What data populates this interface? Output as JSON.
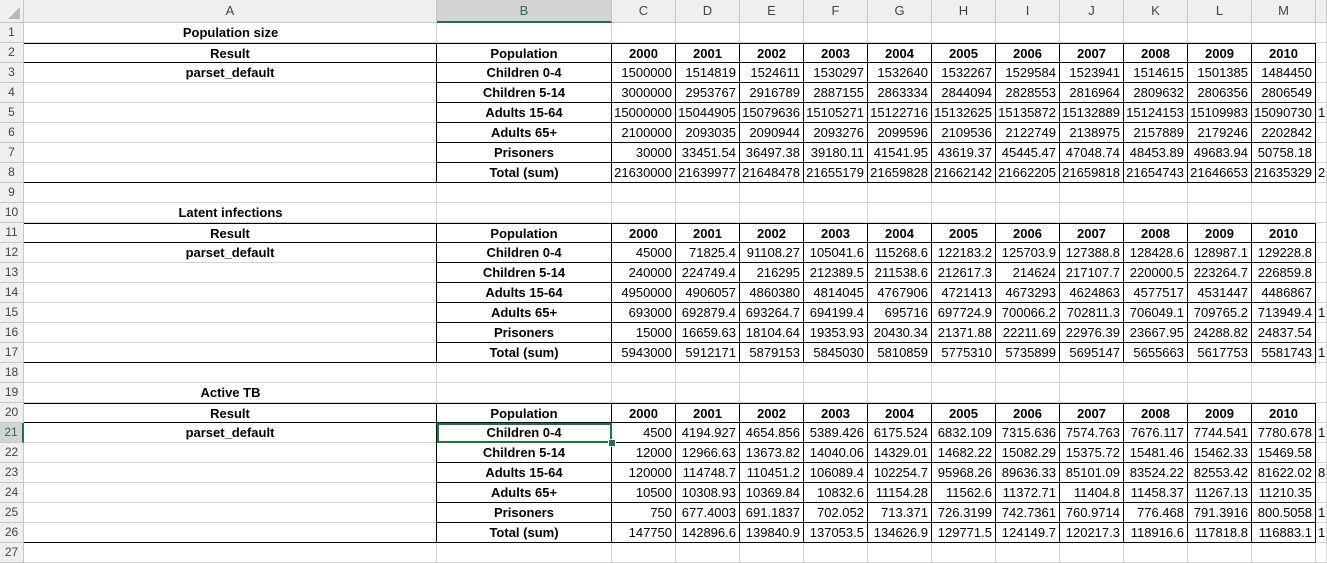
{
  "columns": [
    "A",
    "B",
    "C",
    "D",
    "E",
    "F",
    "G",
    "H",
    "I",
    "J",
    "K",
    "L",
    "M"
  ],
  "rows": [
    "1",
    "2",
    "3",
    "4",
    "5",
    "6",
    "7",
    "8",
    "9",
    "10",
    "11",
    "12",
    "13",
    "14",
    "15",
    "16",
    "17",
    "18",
    "19",
    "20",
    "21",
    "22",
    "23",
    "24",
    "25",
    "26",
    "27"
  ],
  "selected_cell": "B21",
  "years": [
    "2000",
    "2001",
    "2002",
    "2003",
    "2004",
    "2005",
    "2006",
    "2007",
    "2008",
    "2009",
    "2010"
  ],
  "populations": [
    "Children 0-4",
    "Children 5-14",
    "Adults 15-64",
    "Adults 65+",
    "Prisoners",
    "Total (sum)"
  ],
  "header_labels": {
    "result": "Result",
    "population": "Population",
    "parset": "parset_default"
  },
  "sections": [
    {
      "title": "Population size",
      "rows": [
        [
          "1500000",
          "1514819",
          "1524611",
          "1530297",
          "1532640",
          "1532267",
          "1529584",
          "1523941",
          "1514615",
          "1501385",
          "1484450"
        ],
        [
          "3000000",
          "2953767",
          "2916789",
          "2887155",
          "2863334",
          "2844094",
          "2828553",
          "2816964",
          "2809632",
          "2806356",
          "2806549"
        ],
        [
          "15000000",
          "15044905",
          "15079636",
          "15105271",
          "15122716",
          "15132625",
          "15135872",
          "15132889",
          "15124153",
          "15109983",
          "15090730"
        ],
        [
          "2100000",
          "2093035",
          "2090944",
          "2093276",
          "2099596",
          "2109536",
          "2122749",
          "2138975",
          "2157889",
          "2179246",
          "2202842"
        ],
        [
          "30000",
          "33451.54",
          "36497.38",
          "39180.11",
          "41541.95",
          "43619.37",
          "45445.47",
          "47048.74",
          "48453.89",
          "49683.94",
          "50758.18"
        ],
        [
          "21630000",
          "21639977",
          "21648478",
          "21655179",
          "21659828",
          "21662142",
          "21662205",
          "21659818",
          "21654743",
          "21646653",
          "21635329"
        ]
      ],
      "cutoff": [
        "",
        "",
        "1",
        "",
        "",
        "2"
      ]
    },
    {
      "title": "Latent infections",
      "rows": [
        [
          "45000",
          "71825.4",
          "91108.27",
          "105041.6",
          "115268.6",
          "122183.2",
          "125703.9",
          "127388.8",
          "128428.6",
          "128987.1",
          "129228.8"
        ],
        [
          "240000",
          "224749.4",
          "216295",
          "212389.5",
          "211538.6",
          "212617.3",
          "214624",
          "217107.7",
          "220000.5",
          "223264.7",
          "226859.8"
        ],
        [
          "4950000",
          "4906057",
          "4860380",
          "4814045",
          "4767906",
          "4721413",
          "4673293",
          "4624863",
          "4577517",
          "4531447",
          "4486867"
        ],
        [
          "693000",
          "692879.4",
          "693264.7",
          "694199.4",
          "695716",
          "697724.9",
          "700066.2",
          "702811.3",
          "706049.1",
          "709765.2",
          "713949.4"
        ],
        [
          "15000",
          "16659.63",
          "18104.64",
          "19353.93",
          "20430.34",
          "21371.88",
          "22211.69",
          "22976.39",
          "23667.95",
          "24288.82",
          "24837.54"
        ],
        [
          "5943000",
          "5912171",
          "5879153",
          "5845030",
          "5810859",
          "5775310",
          "5735899",
          "5695147",
          "5655663",
          "5617753",
          "5581743"
        ]
      ],
      "cutoff": [
        "",
        "",
        "",
        "1",
        "",
        "1"
      ]
    },
    {
      "title": "Active TB",
      "rows": [
        [
          "4500",
          "4194.927",
          "4654.856",
          "5389.426",
          "6175.524",
          "6832.109",
          "7315.636",
          "7574.763",
          "7676.117",
          "7744.541",
          "7780.678"
        ],
        [
          "12000",
          "12966.63",
          "13673.82",
          "14040.06",
          "14329.01",
          "14682.22",
          "15082.29",
          "15375.72",
          "15481.46",
          "15462.33",
          "15469.58"
        ],
        [
          "120000",
          "114748.7",
          "110451.2",
          "106089.4",
          "102254.7",
          "95968.26",
          "89636.33",
          "85101.09",
          "83524.22",
          "82553.42",
          "81622.02"
        ],
        [
          "10500",
          "10308.93",
          "10369.84",
          "10832.6",
          "11154.28",
          "11562.6",
          "11372.71",
          "11404.8",
          "11458.37",
          "11267.13",
          "11210.35"
        ],
        [
          "750",
          "677.4003",
          "691.1837",
          "702.052",
          "713.371",
          "726.3199",
          "742.7361",
          "760.9714",
          "776.468",
          "791.3916",
          "800.5058"
        ],
        [
          "147750",
          "142896.6",
          "139840.9",
          "137053.5",
          "134626.9",
          "129771.5",
          "124149.7",
          "120217.3",
          "118916.6",
          "117818.8",
          "116883.1"
        ]
      ],
      "cutoff": [
        "1",
        "",
        "8",
        "",
        "1",
        "1"
      ]
    }
  ]
}
